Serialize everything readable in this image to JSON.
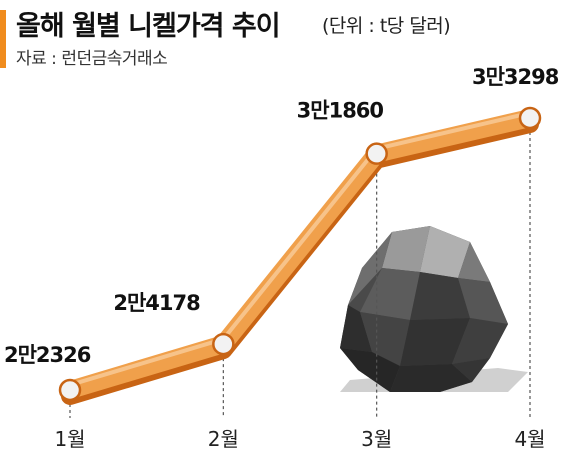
{
  "header": {
    "title": "올해 월별 니켈가격 추이",
    "unit": "(단위 : t당 달러)",
    "source": "자료 : 런던금속거래소"
  },
  "colors": {
    "accent": "#f08c1e",
    "line_fill": "#f0a04b",
    "line_edge": "#c86414",
    "marker": "#f2f2f2",
    "rock_dark": "#3a3a3a"
  },
  "chart_data": {
    "type": "line",
    "title": "올해 월별 니켈가격 추이",
    "categories": [
      "1월",
      "2월",
      "3월",
      "4월"
    ],
    "series": [
      {
        "values": [
          22326,
          24178,
          31860,
          33298
        ]
      }
    ],
    "point_labels": [
      "2만2326",
      "2만4178",
      "3만1860",
      "3만3298"
    ],
    "unit": "t당 달러",
    "grid": false,
    "legend": "none",
    "decoration": "nickel-ore-rock-illustration"
  }
}
